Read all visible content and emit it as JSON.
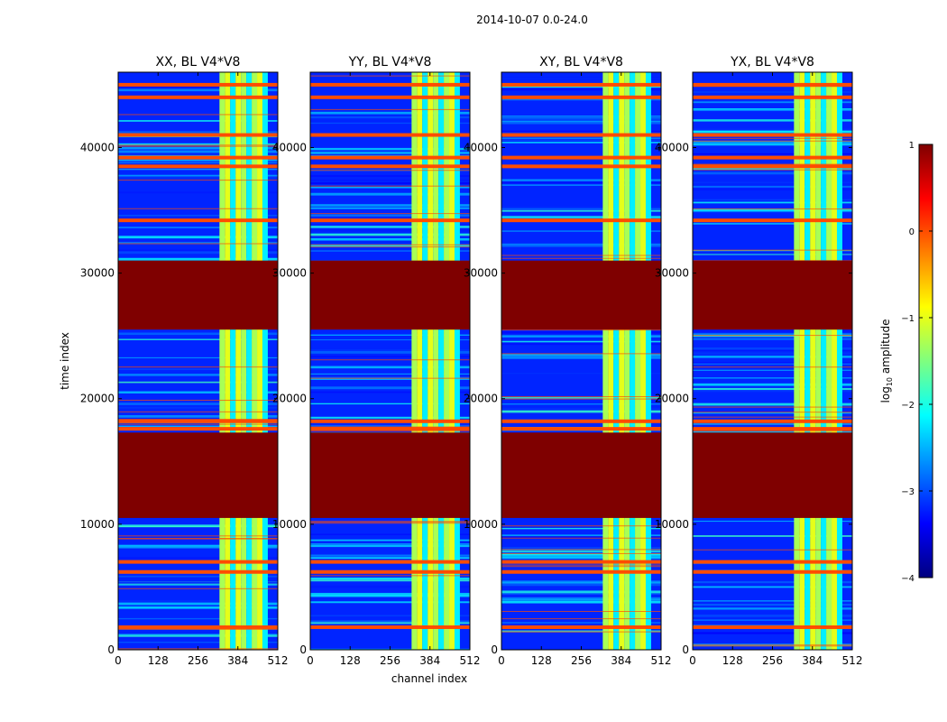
{
  "figure": {
    "suptitle": "2014-10-07 0.0-24.0",
    "xlabel": "channel index",
    "ylabel": "time index"
  },
  "chart_data": [
    {
      "type": "heatmap",
      "title": "XX, BL V4*V8",
      "xlim": [
        0,
        512
      ],
      "ylim": [
        0,
        46000
      ],
      "xticks": [
        0,
        128,
        256,
        384,
        512
      ],
      "yticks": [
        0,
        10000,
        20000,
        30000,
        40000
      ],
      "xtick_labels": [
        "0",
        "128",
        "256",
        "384",
        "512"
      ],
      "ytick_labels": [
        "0",
        "10000",
        "20000",
        "30000",
        "40000"
      ]
    },
    {
      "type": "heatmap",
      "title": "YY, BL V4*V8",
      "xlim": [
        0,
        512
      ],
      "ylim": [
        0,
        46000
      ],
      "xticks": [
        0,
        128,
        256,
        384,
        512
      ],
      "yticks": [
        0,
        10000,
        20000,
        30000,
        40000
      ],
      "xtick_labels": [
        "0",
        "128",
        "256",
        "384",
        "512"
      ],
      "ytick_labels": [
        "0",
        "10000",
        "20000",
        "30000",
        "40000"
      ]
    },
    {
      "type": "heatmap",
      "title": "XY, BL V4*V8",
      "xlim": [
        0,
        512
      ],
      "ylim": [
        0,
        46000
      ],
      "xticks": [
        0,
        128,
        256,
        384,
        512
      ],
      "yticks": [
        0,
        10000,
        20000,
        30000,
        40000
      ],
      "xtick_labels": [
        "0",
        "128",
        "256",
        "384",
        "512"
      ],
      "ytick_labels": [
        "0",
        "10000",
        "20000",
        "30000",
        "40000"
      ]
    },
    {
      "type": "heatmap",
      "title": "YX, BL V4*V8",
      "xlim": [
        0,
        512
      ],
      "ylim": [
        0,
        46000
      ],
      "xticks": [
        0,
        128,
        256,
        384,
        512
      ],
      "yticks": [
        0,
        10000,
        20000,
        30000,
        40000
      ],
      "xtick_labels": [
        "0",
        "128",
        "256",
        "384",
        "512"
      ],
      "ytick_labels": [
        "0",
        "10000",
        "20000",
        "30000",
        "40000"
      ]
    }
  ],
  "heatmap_structure": {
    "saturated_time_blocks": [
      [
        10500,
        17300
      ],
      [
        25500,
        31000
      ]
    ],
    "flagged_time_rows": [
      1800,
      6200,
      7000,
      17600,
      18200,
      34200,
      38500,
      39200,
      41000,
      44000,
      45000
    ],
    "bright_channel_range": [
      325,
      480
    ],
    "background_log10": -3.2,
    "bright_log10": -1.2,
    "flag_log10": 0.0,
    "saturated_log10": 1.0
  },
  "colorbar": {
    "label": "log10 amplitude",
    "label_main": "log",
    "label_sub": "10",
    "label_tail": " amplitude",
    "range": [
      -4,
      1
    ],
    "ticks": [
      1,
      0,
      -1,
      -2,
      -3,
      -4
    ],
    "tick_labels": [
      "1",
      "0",
      "−1",
      "−2",
      "−3",
      "−4"
    ],
    "colormap": [
      "#00007f",
      "#0000ff",
      "#007fff",
      "#00ffff",
      "#7fff7f",
      "#ffff00",
      "#ff7f00",
      "#ff0000",
      "#7f0000"
    ]
  }
}
